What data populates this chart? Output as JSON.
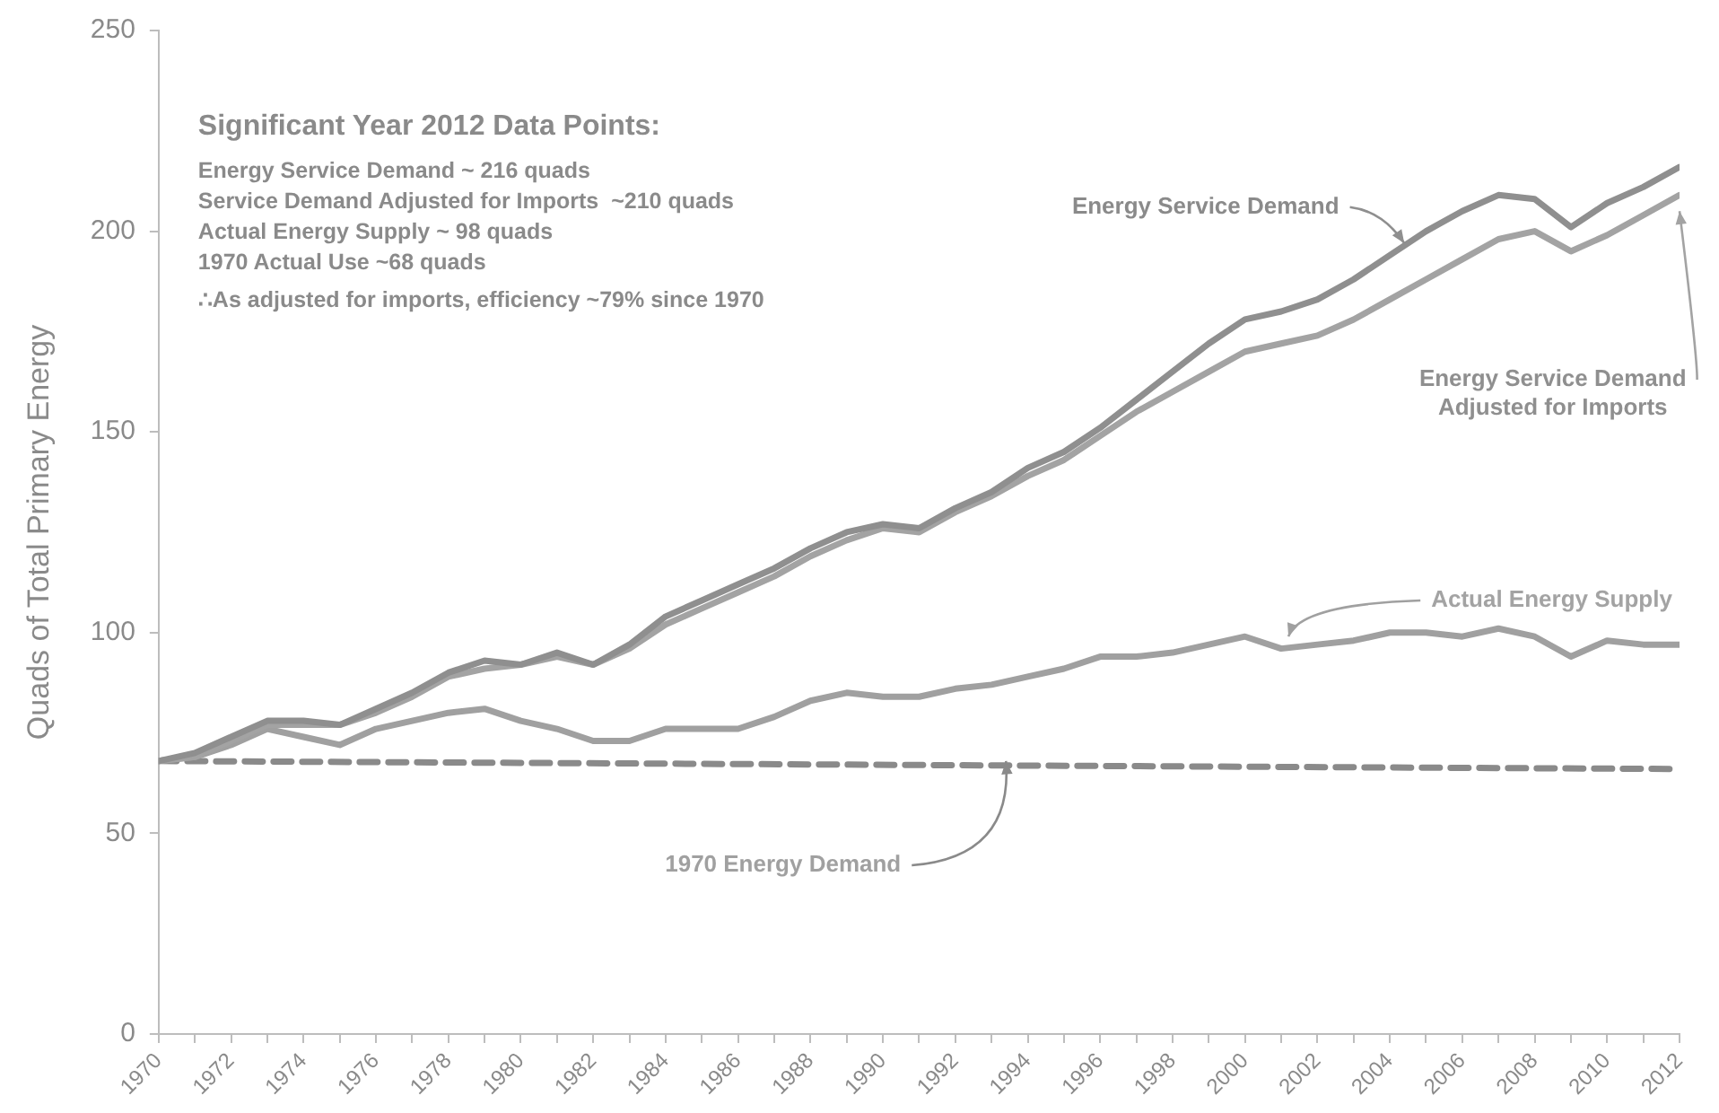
{
  "chart_data": {
    "type": "line",
    "ylabel": "Quads of Total Primary Energy",
    "x": [
      1970,
      1971,
      1972,
      1973,
      1974,
      1975,
      1976,
      1977,
      1978,
      1979,
      1980,
      1981,
      1982,
      1983,
      1984,
      1985,
      1986,
      1987,
      1988,
      1989,
      1990,
      1991,
      1992,
      1993,
      1994,
      1995,
      1996,
      1997,
      1998,
      1999,
      2000,
      2001,
      2002,
      2003,
      2004,
      2005,
      2006,
      2007,
      2008,
      2009,
      2010,
      2011,
      2012
    ],
    "series": [
      {
        "name": "Energy Service Demand",
        "color": "#8f8f8f",
        "values": [
          68,
          70,
          74,
          78,
          78,
          77,
          81,
          85,
          90,
          93,
          92,
          95,
          92,
          97,
          104,
          108,
          112,
          116,
          121,
          125,
          127,
          126,
          131,
          135,
          141,
          145,
          151,
          158,
          165,
          172,
          178,
          180,
          183,
          188,
          194,
          200,
          205,
          209,
          208,
          201,
          207,
          211,
          216
        ]
      },
      {
        "name": "Energy Service Demand Adjusted for Imports",
        "color": "#a3a3a3",
        "values": [
          68,
          69,
          73,
          77,
          77,
          77,
          80,
          84,
          89,
          91,
          92,
          94,
          92,
          96,
          102,
          106,
          110,
          114,
          119,
          123,
          126,
          125,
          130,
          134,
          139,
          143,
          149,
          155,
          160,
          165,
          170,
          172,
          174,
          178,
          183,
          188,
          193,
          198,
          200,
          195,
          199,
          204,
          209
        ]
      },
      {
        "name": "Actual Energy Supply",
        "color": "#a0a0a0",
        "values": [
          68,
          69,
          72,
          76,
          74,
          72,
          76,
          78,
          80,
          81,
          78,
          76,
          73,
          73,
          76,
          76,
          76,
          79,
          83,
          85,
          84,
          84,
          86,
          87,
          89,
          91,
          94,
          94,
          95,
          97,
          99,
          96,
          97,
          98,
          100,
          100,
          99,
          101,
          99,
          94,
          98,
          97,
          97
        ]
      },
      {
        "name": "1970 Energy Demand",
        "color": "#8a8a8a",
        "x": [
          1970,
          2012
        ],
        "values": [
          68,
          66
        ],
        "line_style": "dashed"
      }
    ],
    "xlim": [
      1970,
      2012
    ],
    "xticks": [
      1970,
      {
        "value": 1971,
        "label": null
      },
      1972,
      {
        "value": 1973,
        "label": null
      },
      1974,
      {
        "value": 1975,
        "label": null
      },
      1976,
      {
        "value": 1977,
        "label": null
      },
      1978,
      {
        "value": 1979,
        "label": null
      },
      1980,
      {
        "value": 1981,
        "label": null
      },
      1982,
      {
        "value": 1983,
        "label": null
      },
      1984,
      {
        "value": 1985,
        "label": null
      },
      1986,
      {
        "value": 1987,
        "label": null
      },
      1988,
      {
        "value": 1989,
        "label": null
      },
      1990,
      {
        "value": 1991,
        "label": null
      },
      1992,
      {
        "value": 1993,
        "label": null
      },
      1994,
      {
        "value": 1995,
        "label": null
      },
      1996,
      {
        "value": 1997,
        "label": null
      },
      1998,
      {
        "value": 1999,
        "label": null
      },
      2000,
      {
        "value": 2001,
        "label": null
      },
      2002,
      {
        "value": 2003,
        "label": null
      },
      2004,
      {
        "value": 2005,
        "label": null
      },
      2006,
      {
        "value": 2007,
        "label": null
      },
      2008,
      {
        "value": 2009,
        "label": null
      },
      2010,
      {
        "value": 2011,
        "label": null
      },
      2012
    ],
    "ylim": [
      0,
      250
    ],
    "yticks": [
      0,
      50,
      100,
      150,
      200,
      250
    ],
    "grid": false,
    "legend": false,
    "marker": "none",
    "line_style": "solid",
    "annotations": [
      "Significant Year 2012 Data Points:",
      "Energy Service Demand ~ 216 quads",
      "Service Demand Adjusted for Imports  ~210 quads",
      "Actual Energy Supply ~ 98 quads",
      "1970 Actual Use ~68 quads",
      "∴As adjusted for imports, efficiency ~79% since 1970"
    ]
  }
}
